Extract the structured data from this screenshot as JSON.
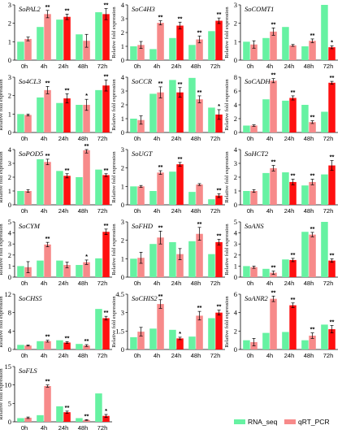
{
  "chart_data": [
    {
      "type": "bar",
      "title": "SoPAL2",
      "categories": [
        "0h",
        "4h",
        "24h",
        "48h",
        "72h"
      ],
      "ylim": [
        0,
        3
      ],
      "yticks": [
        0,
        1,
        2,
        3
      ],
      "ylabel": "",
      "series": [
        {
          "name": "RNA_seq",
          "values": [
            1,
            1.8,
            2.2,
            1.4,
            2.6
          ]
        },
        {
          "name": "qRT_PCR",
          "values": [
            1.15,
            2.5,
            2.35,
            1.05,
            2.5
          ]
        }
      ],
      "errors": [
        0.1,
        0.2,
        0.15,
        0.35,
        0.3
      ],
      "marks": [
        "",
        "**",
        "**",
        "",
        "**"
      ]
    },
    {
      "type": "bar",
      "title": "SoC4H3",
      "categories": [
        "0h",
        "4h",
        "24h",
        "48h",
        "72h"
      ],
      "ylim": [
        0,
        4
      ],
      "yticks": [
        0,
        1,
        2,
        3,
        4
      ],
      "ylabel": "Relative fold expression",
      "series": [
        {
          "name": "RNA_seq",
          "values": [
            1,
            0.8,
            1.6,
            1.1,
            2.1
          ]
        },
        {
          "name": "qRT_PCR",
          "values": [
            1.1,
            2.7,
            2.5,
            1.5,
            2.85
          ]
        }
      ],
      "errors": [
        0.25,
        0.15,
        0.25,
        0.25,
        0.2
      ],
      "marks": [
        "",
        "**",
        "**",
        "**",
        "**"
      ]
    },
    {
      "type": "bar",
      "title": "SoCOMT1",
      "categories": [
        "0h",
        "4h",
        "24h",
        "48h",
        "72h"
      ],
      "ylim": [
        0,
        3
      ],
      "yticks": [
        0,
        1,
        2,
        3
      ],
      "ylabel": "Relative fold expression",
      "series": [
        {
          "name": "RNA_seq",
          "values": [
            1,
            1.2,
            1.8,
            0.75,
            3.2
          ]
        },
        {
          "name": "qRT_PCR",
          "values": [
            0.85,
            1.55,
            0.8,
            1.05,
            0.7
          ]
        }
      ],
      "errors": [
        0.2,
        0.2,
        0.05,
        0.1,
        0.08
      ],
      "marks": [
        "",
        "**",
        "",
        "**",
        "*"
      ]
    },
    {
      "type": "bar",
      "title": "So4CL3",
      "categories": [
        "0h",
        "4h",
        "24h",
        "48h",
        "72h"
      ],
      "ylim": [
        0,
        3
      ],
      "yticks": [
        0,
        1,
        2,
        3
      ],
      "ylabel": "Relative fold expression",
      "series": [
        {
          "name": "RNA_seq",
          "values": [
            1,
            1.9,
            1.6,
            1.5,
            2.3
          ]
        },
        {
          "name": "qRT_PCR",
          "values": [
            0.95,
            2.3,
            1.85,
            1.5,
            2.55
          ]
        }
      ],
      "errors": [
        0.05,
        0.2,
        0.25,
        0.3,
        0.3
      ],
      "marks": [
        "",
        "**",
        "**",
        "*",
        "**"
      ]
    },
    {
      "type": "bar",
      "title": "SoCCR",
      "categories": [
        "0h",
        "4h",
        "24h",
        "48h",
        "72h"
      ],
      "ylim": [
        0,
        4
      ],
      "yticks": [
        0,
        1,
        2,
        3,
        4
      ],
      "ylabel": "Relative fold expression",
      "series": [
        {
          "name": "RNA_seq",
          "values": [
            1,
            2.8,
            3.8,
            3.95,
            1.8
          ]
        },
        {
          "name": "qRT_PCR",
          "values": [
            0.9,
            2.9,
            2.9,
            2.4,
            1.3
          ]
        }
      ],
      "errors": [
        0.3,
        0.4,
        0.35,
        0.25,
        0.35
      ],
      "marks": [
        "",
        "**",
        "**",
        "**",
        "*"
      ]
    },
    {
      "type": "bar",
      "title": "SoCADH",
      "categories": [
        "0h",
        "4h",
        "24h",
        "48h",
        "72h"
      ],
      "ylim": [
        0,
        8
      ],
      "yticks": [
        0,
        2,
        4,
        6,
        8
      ],
      "ylabel": "Relative fold expression",
      "series": [
        {
          "name": "RNA_seq",
          "values": [
            1,
            4.8,
            4.6,
            4.0,
            3.0
          ]
        },
        {
          "name": "qRT_PCR",
          "values": [
            1.0,
            7.5,
            5.0,
            1.5,
            7.2
          ]
        }
      ],
      "errors": [
        0.1,
        0.3,
        0.3,
        0.2,
        0.2
      ],
      "marks": [
        "",
        "**",
        "**",
        "**",
        "**"
      ]
    },
    {
      "type": "bar",
      "title": "SoPOD5",
      "categories": [
        "0h",
        "4h",
        "24h",
        "48h",
        "72h"
      ],
      "ylim": [
        0,
        4
      ],
      "yticks": [
        0,
        1,
        2,
        3,
        4
      ],
      "ylabel": "Relative fold expression",
      "series": [
        {
          "name": "RNA_seq",
          "values": [
            1,
            3.3,
            2.45,
            2.0,
            2.55
          ]
        },
        {
          "name": "qRT_PCR",
          "values": [
            1.0,
            3.1,
            2.1,
            3.95,
            2.15
          ]
        }
      ],
      "errors": [
        0.1,
        0.2,
        0.15,
        0.2,
        0.1
      ],
      "marks": [
        "",
        "**",
        "**",
        "**",
        "**"
      ]
    },
    {
      "type": "bar",
      "title": "SoUGT",
      "categories": [
        "0h",
        "4h",
        "24h",
        "48h",
        "72h"
      ],
      "ylim": [
        0,
        3
      ],
      "yticks": [
        0,
        1,
        2,
        3
      ],
      "ylabel": "Relative fold expression",
      "series": [
        {
          "name": "RNA_seq",
          "values": [
            1,
            0.75,
            1.8,
            0.7,
            0.3
          ]
        },
        {
          "name": "qRT_PCR",
          "values": [
            1.0,
            1.75,
            2.2,
            1.1,
            0.5
          ]
        }
      ],
      "errors": [
        0.05,
        0.1,
        0.1,
        0.05,
        0.1
      ],
      "marks": [
        "",
        "**",
        "**",
        "",
        "**"
      ]
    },
    {
      "type": "bar",
      "title": "SoHCT2",
      "categories": [
        "0h",
        "4h",
        "24h",
        "48h",
        "72h"
      ],
      "ylim": [
        0,
        4
      ],
      "yticks": [
        0,
        1,
        2,
        3,
        4
      ],
      "ylabel": "Relative fold expression",
      "series": [
        {
          "name": "RNA_seq",
          "values": [
            1,
            2.3,
            2.35,
            1.4,
            2.2
          ]
        },
        {
          "name": "qRT_PCR",
          "values": [
            1.0,
            2.65,
            1.65,
            1.65,
            2.85
          ]
        }
      ],
      "errors": [
        0.1,
        0.2,
        0.2,
        0.2,
        0.35
      ],
      "marks": [
        "",
        "**",
        "**",
        "**",
        "**"
      ]
    },
    {
      "type": "bar",
      "title": "SoCYM",
      "categories": [
        "0h",
        "4h",
        "24h",
        "48h",
        "72h"
      ],
      "ylim": [
        0,
        5
      ],
      "yticks": [
        0,
        1,
        2,
        3,
        4,
        5
      ],
      "ylabel": "Relative fold expression",
      "series": [
        {
          "name": "RNA_seq",
          "values": [
            1,
            1.5,
            1.5,
            1.1,
            1.7
          ]
        },
        {
          "name": "qRT_PCR",
          "values": [
            0.9,
            2.95,
            1.1,
            1.35,
            4.1
          ]
        }
      ],
      "errors": [
        0.5,
        0.2,
        0.25,
        0.2,
        0.25
      ],
      "marks": [
        "",
        "**",
        "",
        "*",
        "**"
      ]
    },
    {
      "type": "bar",
      "title": "SoFHD",
      "categories": [
        "0h",
        "4h",
        "24h",
        "48h",
        "72h"
      ],
      "ylim": [
        0,
        3
      ],
      "yticks": [
        0,
        1,
        2,
        3
      ],
      "ylabel": "Relative fold expression",
      "series": [
        {
          "name": "RNA_seq",
          "values": [
            1,
            1.8,
            1.9,
            1.95,
            1.25
          ]
        },
        {
          "name": "qRT_PCR",
          "values": [
            1.05,
            2.15,
            1.25,
            2.35,
            1.9
          ]
        }
      ],
      "errors": [
        0.3,
        0.35,
        0.3,
        0.35,
        0.15
      ],
      "marks": [
        "",
        "**",
        "",
        "**",
        "**"
      ]
    },
    {
      "type": "bar",
      "title": "SoANS",
      "categories": [
        "0h",
        "4h",
        "24h",
        "48h",
        "72h"
      ],
      "ylim": [
        0,
        5
      ],
      "yticks": [
        0,
        1,
        2,
        3,
        4,
        5
      ],
      "ylabel": "Relative fold expression",
      "series": [
        {
          "name": "RNA_seq",
          "values": [
            1,
            0.75,
            1.6,
            4.1,
            5.0
          ]
        },
        {
          "name": "qRT_PCR",
          "values": [
            0.9,
            0.4,
            1.55,
            3.85,
            1.5
          ]
        }
      ],
      "errors": [
        0.1,
        0.15,
        0.15,
        0.2,
        0.15
      ],
      "marks": [
        "",
        "**",
        "**",
        "**",
        "**"
      ]
    },
    {
      "type": "bar",
      "title": "SoCHS5",
      "categories": [
        "0h",
        "4h",
        "24h",
        "48h",
        "72h"
      ],
      "ylim": [
        0,
        12
      ],
      "yticks": [
        0,
        4,
        8,
        12
      ],
      "ylabel": "Relative fold expression",
      "series": [
        {
          "name": "RNA_seq",
          "values": [
            1,
            1.8,
            2.0,
            1.2,
            8.8
          ]
        },
        {
          "name": "qRT_PCR",
          "values": [
            0.85,
            1.8,
            1.5,
            0.85,
            6.8
          ]
        }
      ],
      "errors": [
        0.1,
        0.2,
        0.2,
        0.2,
        0.4
      ],
      "marks": [
        "",
        "**",
        "**",
        "**",
        "**"
      ]
    },
    {
      "type": "bar",
      "title": "SoCHIS2",
      "categories": [
        "0h",
        "4h",
        "24h",
        "48h",
        "72h"
      ],
      "ylim": [
        0,
        4.5
      ],
      "yticks": [
        0,
        1.5,
        3,
        4.5
      ],
      "ylabel": "Relative fold expression",
      "series": [
        {
          "name": "RNA_seq",
          "values": [
            1,
            1.7,
            1.6,
            1.05,
            2.55
          ]
        },
        {
          "name": "qRT_PCR",
          "values": [
            1.45,
            3.7,
            0.9,
            2.75,
            3.0
          ]
        }
      ],
      "errors": [
        0.35,
        0.35,
        0.1,
        0.35,
        0.2
      ],
      "marks": [
        "",
        "**",
        "*",
        "**",
        "**"
      ]
    },
    {
      "type": "bar",
      "title": "SoANR2",
      "categories": [
        "0h",
        "4h",
        "24h",
        "48h",
        "72h"
      ],
      "ylim": [
        0,
        6
      ],
      "yticks": [
        0,
        2,
        4,
        6
      ],
      "ylabel": "Relative fold expression",
      "series": [
        {
          "name": "RNA_seq",
          "values": [
            1,
            1.8,
            1.9,
            1.0,
            2.7
          ]
        },
        {
          "name": "qRT_PCR",
          "values": [
            0.8,
            5.5,
            4.8,
            1.5,
            2.2
          ]
        }
      ],
      "errors": [
        0.4,
        0.3,
        0.25,
        0.3,
        0.4
      ],
      "marks": [
        "",
        "**",
        "**",
        "**",
        "**"
      ]
    },
    {
      "type": "bar",
      "title": "SoFLS",
      "categories": [
        "0h",
        "4h",
        "24h",
        "48h",
        "72h"
      ],
      "ylim": [
        0,
        15
      ],
      "yticks": [
        0,
        5,
        10,
        15
      ],
      "ylabel": "Relative fold expression",
      "series": [
        {
          "name": "RNA_seq",
          "values": [
            1,
            1.8,
            4.2,
            1.0,
            7.7
          ]
        },
        {
          "name": "qRT_PCR",
          "values": [
            1.1,
            9.7,
            2.6,
            0.5,
            1.6
          ]
        }
      ],
      "errors": [
        0.2,
        0.3,
        0.3,
        0.1,
        0.4
      ],
      "marks": [
        "",
        "**",
        "**",
        "**",
        "*"
      ]
    }
  ],
  "colors": {
    "rna_seq": "#66f2a2",
    "qrt_pcr": "#f78a8a",
    "qrt_pcr_dark": "#ff1010",
    "axis": "#000000"
  },
  "legend": {
    "rna_seq": "RNA_seq",
    "qrt_pcr": "qRT_PCR"
  }
}
